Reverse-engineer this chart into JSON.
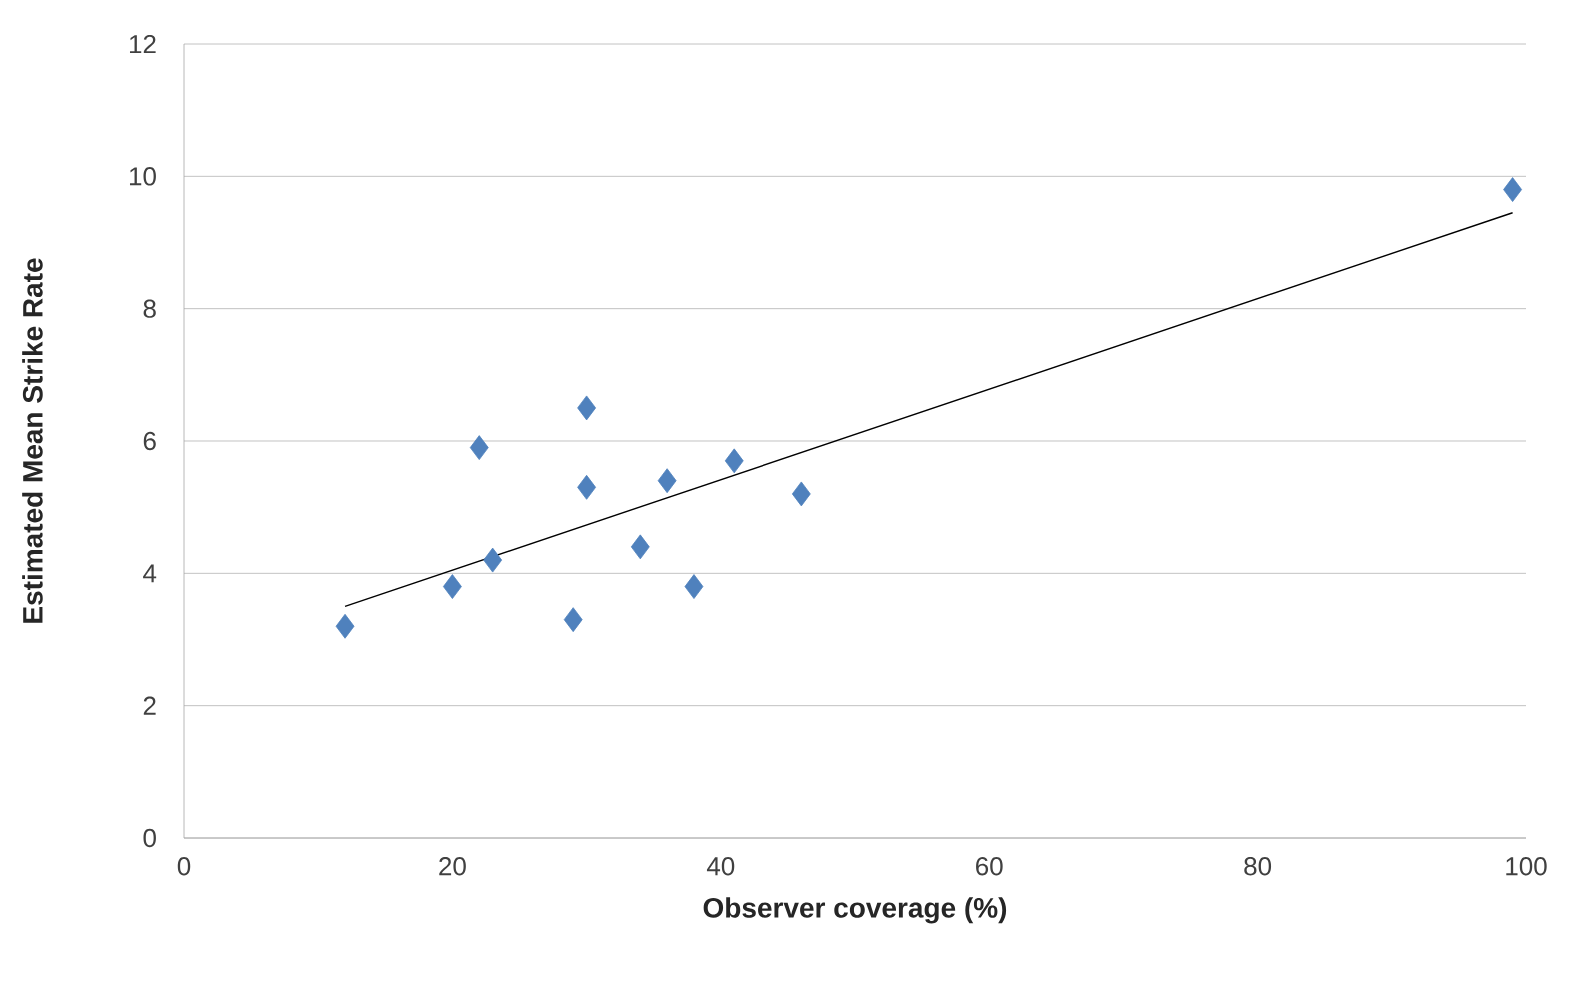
{
  "chart_data": {
    "type": "scatter",
    "xlabel": "Observer coverage (%)",
    "ylabel": "Estimated Mean Strike Rate",
    "xlim": [
      0,
      100
    ],
    "ylim": [
      0,
      12
    ],
    "xticks": [
      0,
      20,
      40,
      60,
      80,
      100
    ],
    "yticks": [
      0,
      2,
      4,
      6,
      8,
      10,
      12
    ],
    "grid": "y",
    "series": [
      {
        "marker": "diamond",
        "color": "#4f81bd",
        "x": [
          12,
          20,
          22,
          23,
          29,
          30,
          30,
          34,
          36,
          38,
          41,
          46,
          99
        ],
        "values": [
          3.2,
          3.8,
          5.9,
          4.2,
          3.3,
          6.5,
          5.3,
          4.4,
          5.4,
          3.8,
          5.7,
          5.2,
          9.8
        ]
      },
      {
        "type": "line",
        "color": "#000000",
        "x": [
          12,
          99
        ],
        "values": [
          3.5,
          9.45
        ]
      }
    ]
  }
}
